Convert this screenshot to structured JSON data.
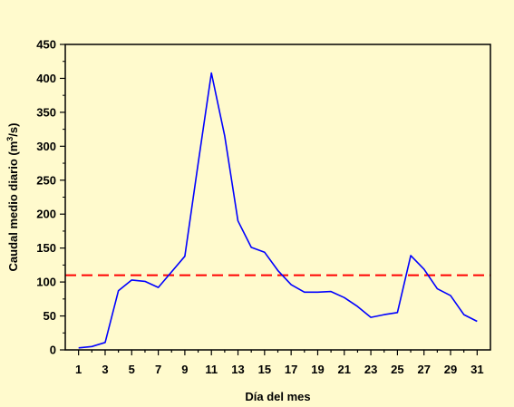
{
  "chart_data": {
    "type": "line",
    "xlabel": "Día del mes",
    "ylabel": "Caudal medio diario (m³/s)",
    "ylabel_parts": {
      "before": "Caudal medio diario (m",
      "sup": "3",
      "after": "/s)"
    },
    "xlim": [
      0,
      32
    ],
    "ylim": [
      0,
      450
    ],
    "x_ticks": [
      1,
      3,
      5,
      7,
      9,
      11,
      13,
      15,
      17,
      19,
      21,
      23,
      25,
      27,
      29,
      31
    ],
    "y_ticks": [
      0,
      50,
      100,
      150,
      200,
      250,
      300,
      350,
      400,
      450
    ],
    "grid": false,
    "series": [
      {
        "color": "#0000FF",
        "x": [
          1,
          2,
          3,
          4,
          5,
          6,
          7,
          8,
          9,
          10,
          11,
          12,
          13,
          14,
          15,
          16,
          17,
          18,
          19,
          20,
          21,
          22,
          23,
          24,
          25,
          26,
          27,
          28,
          29,
          30,
          31
        ],
        "values": [
          3,
          5,
          11,
          87,
          103,
          101,
          92,
          115,
          138,
          275,
          408,
          315,
          190,
          151,
          144,
          117,
          96,
          85,
          85,
          86,
          77,
          64,
          48,
          52,
          55,
          139,
          119,
          90,
          80,
          52,
          42
        ]
      }
    ],
    "reference_line": {
      "y": 110,
      "color": "#FF0000",
      "style": "dashed"
    },
    "colors": {
      "background": "#FFFACD",
      "series": "#0000FF",
      "reference": "#FF0000",
      "axis": "#000000"
    }
  }
}
